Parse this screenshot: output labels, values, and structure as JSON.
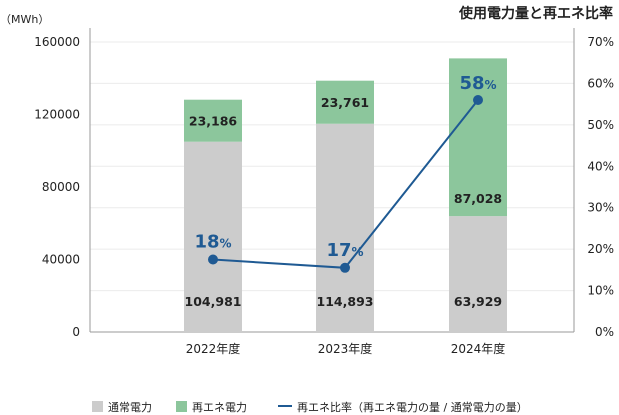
{
  "chart_data": {
    "type": "bar",
    "title": "使用電力量と再エネ比率",
    "left_axis": {
      "unit": "（MWh）",
      "ylim": [
        0,
        160000
      ],
      "ticks": [
        "0",
        "40000",
        "80000",
        "120000",
        "160000"
      ]
    },
    "right_axis": {
      "ylim": [
        0,
        70
      ],
      "ticks": [
        "0%",
        "10%",
        "20%",
        "30%",
        "40%",
        "50%",
        "60%",
        "70%"
      ]
    },
    "categories": [
      "2022年度",
      "2023年度",
      "2024年度"
    ],
    "series": [
      {
        "name": "通常電力",
        "values": [
          104981,
          114893,
          63929
        ],
        "labels": [
          "104,981",
          "114,893",
          "63,929"
        ],
        "color": "#cccccc"
      },
      {
        "name": "再エネ電力",
        "values": [
          23186,
          23761,
          87028
        ],
        "labels": [
          "23,186",
          "23,761",
          "87,028"
        ],
        "color": "#8cc69c"
      }
    ],
    "line": {
      "name": "再エネ比率（再エネ電力の量 / 通常電力の量）",
      "values": [
        18,
        17,
        58
      ],
      "plot_values": [
        17.5,
        15.5,
        56
      ],
      "labels": [
        "18",
        "17",
        "58"
      ],
      "suffix": "%",
      "color": "#1f5a93"
    },
    "grid": true,
    "legend": "bottom"
  }
}
